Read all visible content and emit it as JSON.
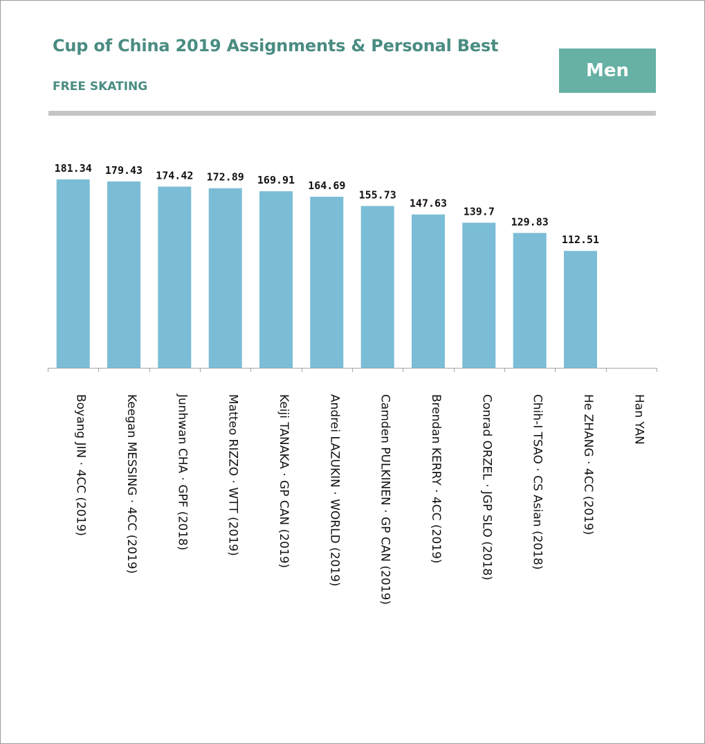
{
  "header": {
    "title": "Cup of China 2019 Assignments & Personal Best",
    "subtitle": "FREE SKATING",
    "badge": "Men"
  },
  "colors": {
    "accent": "#4a8c82",
    "badge_bg": "#66b0a4",
    "bar": "#7bbdd6",
    "rule": "#c4c4c4"
  },
  "chart_data": {
    "type": "bar",
    "categories": [
      "Boyang JIN · 4CC (2019)",
      "Keegan MESSING · 4CC (2019)",
      "Junhwan CHA · GPF (2018)",
      "Matteo RIZZO · WTT (2019)",
      "Keiji TANAKA · GP CAN (2019)",
      "Andrei LAZUKIN · WORLD (2019)",
      "Camden PULKINEN · GP CAN (2019)",
      "Brendan KERRY · 4CC (2019)",
      "Conrad ORZEL · JGP SLO (2018)",
      "Chih-I TSAO · CS Asian (2018)",
      "He ZHANG · 4CC (2019)",
      "Han YAN"
    ],
    "values": [
      181.34,
      179.43,
      174.42,
      172.89,
      169.91,
      164.69,
      155.73,
      147.63,
      139.7,
      129.83,
      112.51,
      null
    ],
    "value_labels": [
      "181.34",
      "179.43",
      "174.42",
      "172.89",
      "169.91",
      "164.69",
      "155.73",
      "147.63",
      "139.7",
      "129.83",
      "112.51",
      ""
    ],
    "ylim": [
      0,
      181.34
    ],
    "grid": false,
    "legend": "none"
  }
}
